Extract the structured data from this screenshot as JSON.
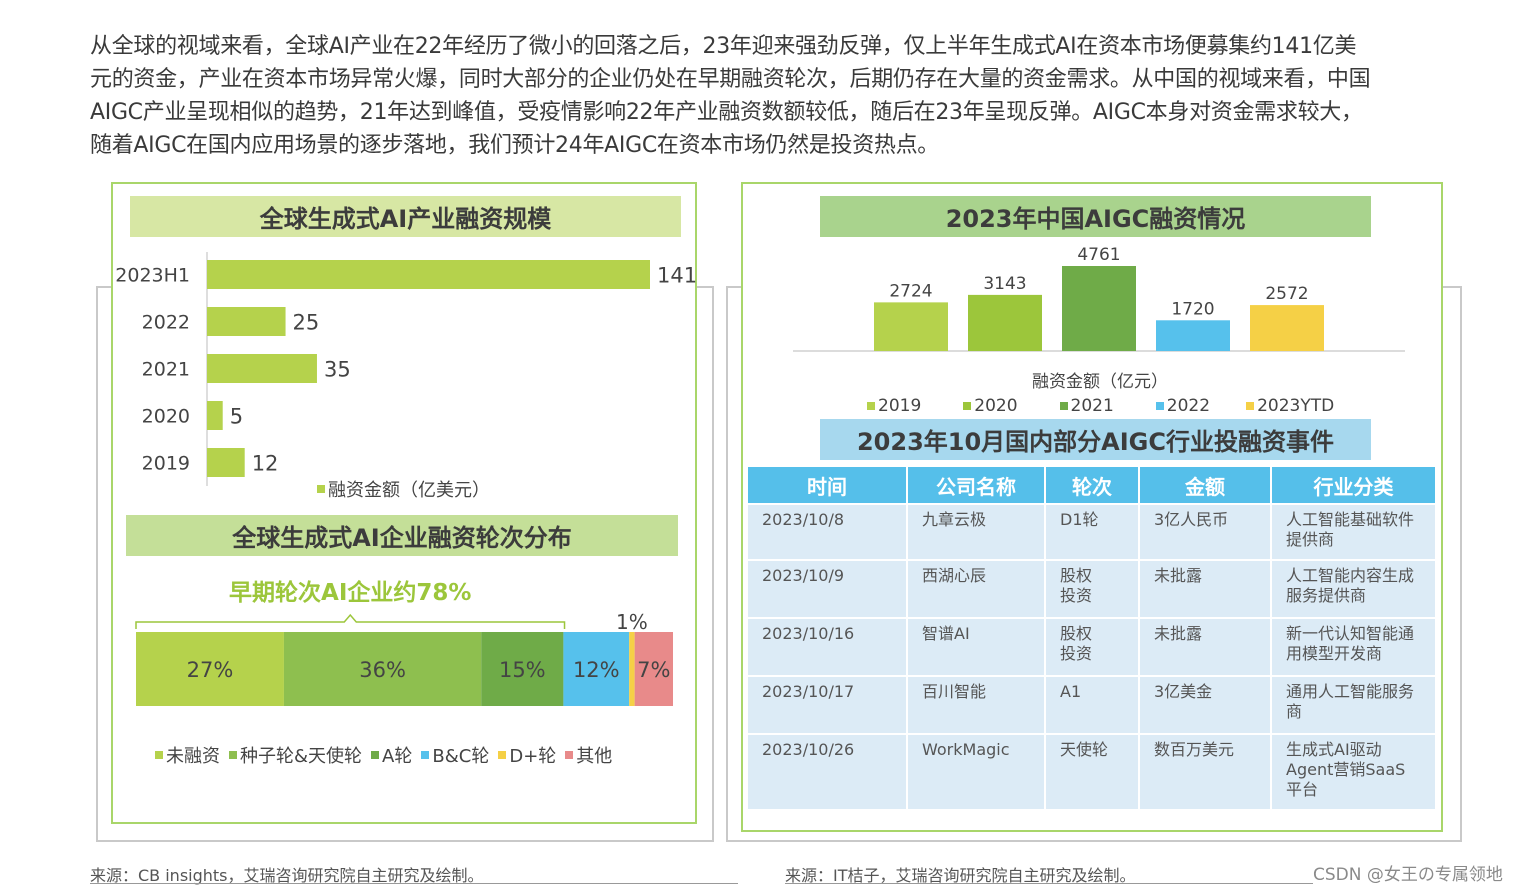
{
  "intro": {
    "lines": [
      "从全球的视域来看，全球AI产业在22年经历了微小的回落之后，23年迎来强劲反弹，仅上半年生成式AI在资本市场便募集约141亿美",
      "元的资金，产业在资本市场异常火爆，同时大部分的企业仍处在早期融资轮次，后期仍存在大量的资金需求。从中国的视域来看，中国",
      "AIGC产业呈现相似的趋势，21年达到峰值，受疫情影响22年产业融资数额较低，随后在23年呈现反弹。AIGC本身对资金需求较大，",
      "随着AIGC在国内应用场景的逐步落地，我们预计24年AIGC在资本市场仍然是投资热点。"
    ]
  },
  "left": {
    "bar_title": "全球生成式AI产业融资规模",
    "bar_legend": "融资金额（亿美元）",
    "stack_title": "全球生成式AI企业融资轮次分布",
    "stack_annotation": "早期轮次AI企业约78%",
    "source": "来源：CB insights，艾瑞咨询研究院自主研究及绘制。"
  },
  "right": {
    "col_title": "2023年中国AIGC融资情况",
    "col_axis_label": "融资金额（亿元）",
    "table_title": "2023年10月国内部分AIGC行业投融资事件",
    "table": {
      "headers": [
        "时间",
        "公司名称",
        "轮次",
        "金额",
        "行业分类"
      ],
      "rows": [
        [
          [
            "2023/10/8"
          ],
          [
            "九章云极"
          ],
          [
            "D1轮"
          ],
          [
            "3亿人民币"
          ],
          [
            "人工智能基础软件",
            "提供商"
          ]
        ],
        [
          [
            "2023/10/9"
          ],
          [
            "西湖心辰"
          ],
          [
            "股权",
            "投资"
          ],
          [
            "未批露"
          ],
          [
            "人工智能内容生成",
            "服务提供商"
          ]
        ],
        [
          [
            "2023/10/16"
          ],
          [
            "智谱AI"
          ],
          [
            "股权",
            "投资"
          ],
          [
            "未批露"
          ],
          [
            "新一代认知智能通",
            "用模型开发商"
          ]
        ],
        [
          [
            "2023/10/17"
          ],
          [
            "百川智能"
          ],
          [
            "A1"
          ],
          [
            "3亿美金"
          ],
          [
            "通用人工智能服务",
            "商"
          ]
        ],
        [
          [
            "2023/10/26"
          ],
          [
            "WorkMagic"
          ],
          [
            "天使轮"
          ],
          [
            "数百万美元"
          ],
          [
            "生成式AI驱动",
            "Agent营销SaaS",
            "平台"
          ]
        ]
      ]
    },
    "source": "来源：IT桔子，艾瑞咨询研究院自主研究及绘制。"
  },
  "watermark": "CSDN @女王の专属领地",
  "colors": {
    "bar_green": "#b5d24c",
    "banner_light_green": "#d7e7a4",
    "banner_mid_green": "#c4df98",
    "col_banner_green": "#a9d38d",
    "table_banner_blue": "#a7d8ee",
    "header_blue": "#55bfea",
    "row_blue": "#dcebf6",
    "annotation_green": "#9cc63b"
  },
  "chart_data": [
    {
      "type": "bar",
      "orientation": "horizontal",
      "title": "全球生成式AI产业融资规模",
      "categories": [
        "2023H1",
        "2022",
        "2021",
        "2020",
        "2019"
      ],
      "values": [
        141,
        25,
        35,
        5,
        12
      ],
      "series": [
        {
          "name": "融资金额（亿美元）",
          "values": [
            141,
            25,
            35,
            5,
            12
          ]
        }
      ],
      "xlim": [
        0,
        141
      ],
      "legend": "bottom",
      "grid": false
    },
    {
      "type": "bar",
      "stacked": true,
      "orientation": "horizontal",
      "title": "全球生成式AI企业融资轮次分布",
      "annotation": "早期轮次AI企业约78%",
      "series": [
        {
          "name": "未融资",
          "value": 27,
          "label": "27%",
          "color": "#b5d24c"
        },
        {
          "name": "种子轮&天使轮",
          "value": 36,
          "label": "36%",
          "color": "#8ebf4f"
        },
        {
          "name": "A轮",
          "value": 15,
          "label": "15%",
          "color": "#6fab48"
        },
        {
          "name": "B&C轮",
          "value": 12,
          "label": "12%",
          "color": "#56c1ec"
        },
        {
          "name": "D+轮",
          "value": 1,
          "label": "1%",
          "color": "#f5d046"
        },
        {
          "name": "其他",
          "value": 7,
          "label": "7%",
          "color": "#e88a8a"
        }
      ],
      "legend": "bottom",
      "grid": false
    },
    {
      "type": "bar",
      "title": "2023年中国AIGC融资情况",
      "xlabel": "融资金额（亿元）",
      "categories": [
        "2019",
        "2020",
        "2021",
        "2022",
        "2023YTD"
      ],
      "values": [
        2724,
        3143,
        4761,
        1720,
        2572
      ],
      "colors": [
        "#b5d24c",
        "#9cc63b",
        "#6fab48",
        "#56c1ec",
        "#f5d046"
      ],
      "ylim": [
        0,
        4761
      ],
      "legend": "bottom",
      "grid": false
    }
  ]
}
